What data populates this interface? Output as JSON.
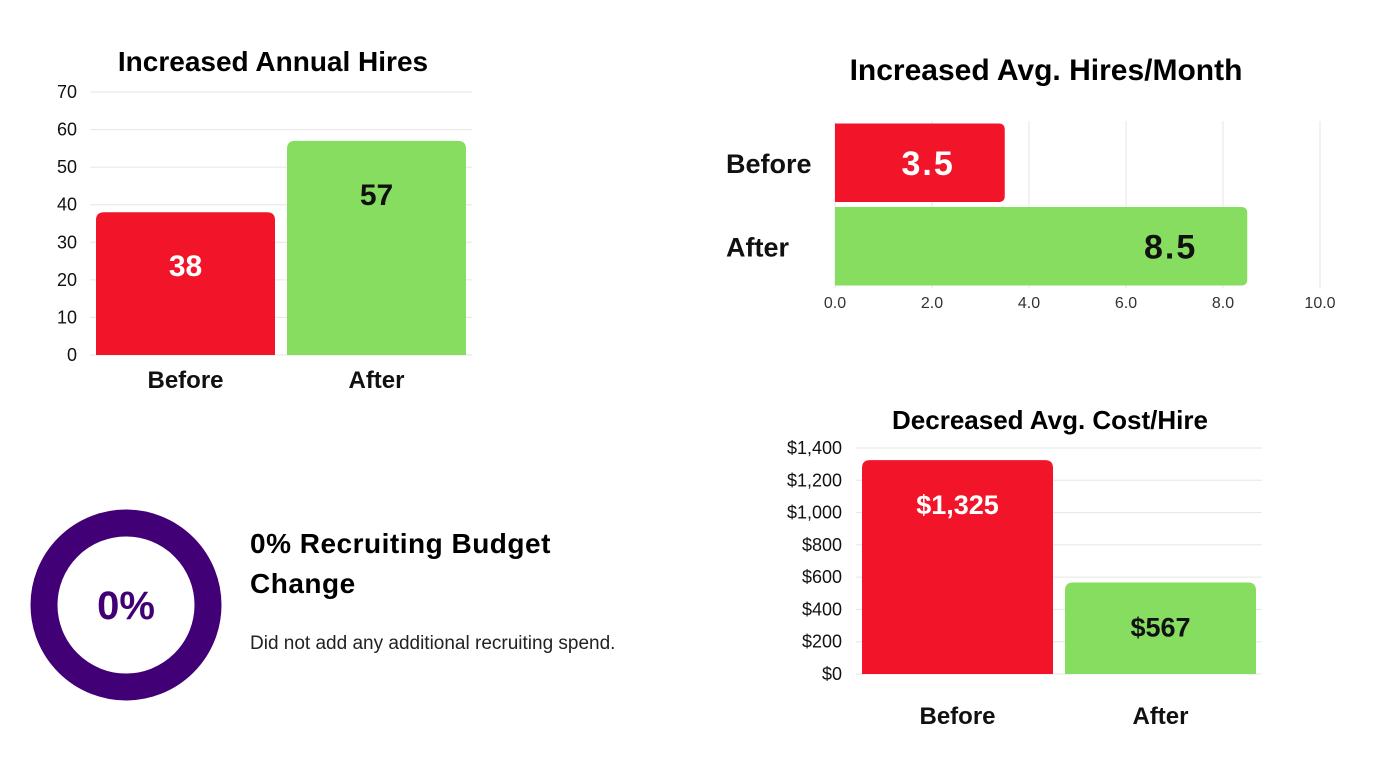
{
  "colors": {
    "before": "#f2152a",
    "after": "#87dd5f",
    "ring": "#420076",
    "before_label": "#ffffff",
    "after_label": "#111111"
  },
  "chart_data": [
    {
      "type": "bar",
      "title": "Increased Annual Hires",
      "categories": [
        "Before",
        "After"
      ],
      "values": [
        38,
        57
      ],
      "data_labels": [
        "38",
        "57"
      ],
      "yticks": [
        "0",
        "10",
        "20",
        "30",
        "40",
        "50",
        "60",
        "70"
      ],
      "ylim": [
        0,
        70
      ],
      "grid": true,
      "legend": "none"
    },
    {
      "type": "bar",
      "orientation": "horizontal",
      "title": "Increased Avg. Hires/Month",
      "categories": [
        "Before",
        "After"
      ],
      "values": [
        3.5,
        8.5
      ],
      "data_labels": [
        "3.5",
        "8.5"
      ],
      "xticks": [
        "0.0",
        "2.0",
        "4.0",
        "6.0",
        "8.0",
        "10.0"
      ],
      "xlim": [
        0,
        10
      ],
      "grid": true,
      "legend": "none"
    },
    {
      "type": "bar",
      "title": "Decreased Avg. Cost/Hire",
      "categories": [
        "Before",
        "After"
      ],
      "values": [
        1325,
        567
      ],
      "data_labels": [
        "$1,325",
        "$567"
      ],
      "yticks": [
        "$0",
        "$200",
        "$400",
        "$600",
        "$800",
        "$1,000",
        "$1,200",
        "$1,400"
      ],
      "ylim": [
        0,
        1400
      ],
      "grid": true,
      "legend": "none"
    }
  ],
  "budget": {
    "percent": "0%",
    "value": 0,
    "title": "0% Recruiting Budget Change",
    "description": "Did not add any additional recruiting spend."
  }
}
